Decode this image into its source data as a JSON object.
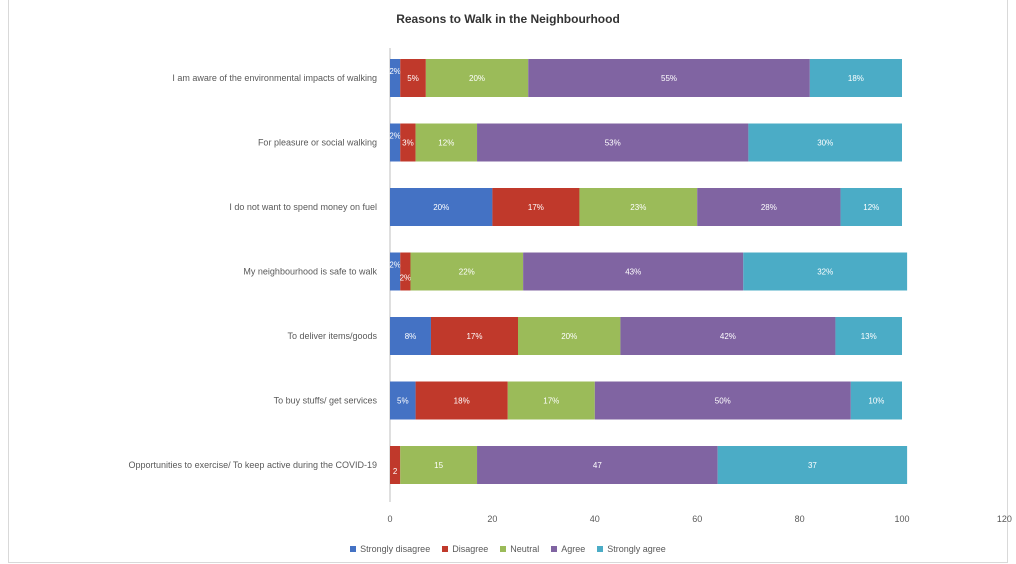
{
  "chart_data": {
    "type": "bar",
    "orientation": "horizontal",
    "stacked": true,
    "title": "Reasons to Walk in the Neighbourhood",
    "xlim": [
      0,
      120
    ],
    "x_ticks": [
      "0",
      "20",
      "40",
      "60",
      "80",
      "100",
      "120"
    ],
    "grid": false,
    "legend_position": "bottom",
    "categories": [
      "I am aware of the environmental impacts of walking",
      "For pleasure or social walking",
      "I do not want to spend money on fuel",
      "My neighbourhood is safe to walk",
      "To deliver items/goods",
      "To buy stuffs/ get services",
      "Opportunities to exercise/ To keep active during the COVID-19"
    ],
    "series": [
      {
        "name": "Strongly disagree",
        "color": "#4472C4",
        "values": [
          2,
          2,
          20,
          2,
          8,
          5,
          0
        ],
        "labels": [
          "2%",
          "2%",
          "20%",
          "2%",
          "8%",
          "5%",
          ""
        ]
      },
      {
        "name": "Disagree",
        "color": "#C0392B",
        "values": [
          5,
          3,
          17,
          2,
          17,
          18,
          2
        ],
        "labels": [
          "5%",
          "3%",
          "17%",
          "2%",
          "17%",
          "18%",
          "2"
        ]
      },
      {
        "name": "Neutral",
        "color": "#9BBB59",
        "values": [
          20,
          12,
          23,
          22,
          20,
          17,
          15
        ],
        "labels": [
          "20%",
          "12%",
          "23%",
          "22%",
          "20%",
          "17%",
          "15"
        ]
      },
      {
        "name": "Agree",
        "color": "#8064A2",
        "values": [
          55,
          53,
          28,
          43,
          42,
          50,
          47
        ],
        "labels": [
          "55%",
          "53%",
          "28%",
          "43%",
          "42%",
          "50%",
          "47"
        ]
      },
      {
        "name": "Strongly agree",
        "color": "#4BACC6",
        "values": [
          18,
          30,
          12,
          32,
          13,
          10,
          37
        ],
        "labels": [
          "18%",
          "30%",
          "12%",
          "32%",
          "13%",
          "10%",
          "37"
        ]
      }
    ]
  }
}
